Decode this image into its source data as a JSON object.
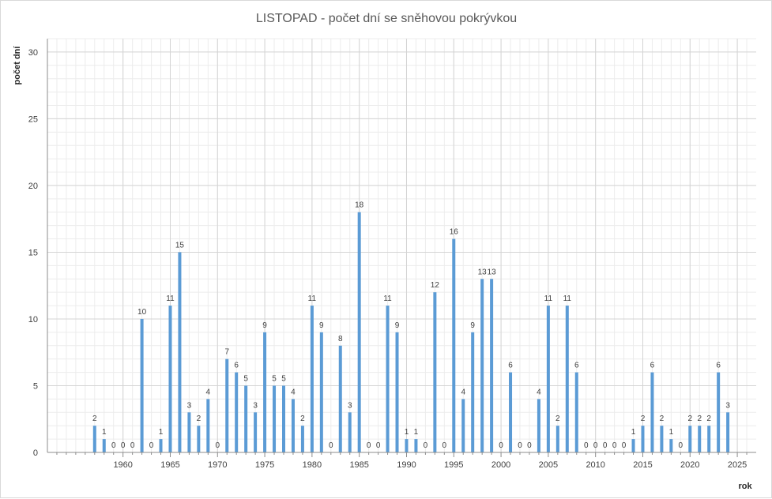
{
  "chart_data": {
    "type": "bar",
    "title": "LISTOPAD - počet dní se sněhovou pokrývkou",
    "xlabel": "rok",
    "ylabel": "počet dní",
    "x": [
      1957,
      1958,
      1959,
      1960,
      1961,
      1962,
      1963,
      1964,
      1965,
      1966,
      1967,
      1968,
      1969,
      1970,
      1971,
      1972,
      1973,
      1974,
      1975,
      1976,
      1977,
      1978,
      1979,
      1980,
      1981,
      1982,
      1983,
      1984,
      1985,
      1986,
      1987,
      1988,
      1989,
      1990,
      1991,
      1992,
      1993,
      1994,
      1995,
      1996,
      1997,
      1998,
      1999,
      2000,
      2001,
      2002,
      2003,
      2004,
      2005,
      2006,
      2007,
      2008,
      2009,
      2010,
      2011,
      2012,
      2013,
      2014,
      2015,
      2016,
      2017,
      2018,
      2019,
      2020,
      2021,
      2022,
      2023,
      2024
    ],
    "values": [
      2,
      1,
      0,
      0,
      0,
      10,
      0,
      1,
      11,
      15,
      3,
      2,
      4,
      0,
      7,
      6,
      5,
      3,
      9,
      5,
      5,
      4,
      2,
      11,
      9,
      0,
      8,
      3,
      18,
      0,
      0,
      11,
      9,
      1,
      1,
      0,
      12,
      0,
      16,
      4,
      9,
      13,
      13,
      0,
      6,
      0,
      0,
      4,
      11,
      2,
      11,
      6,
      0,
      0,
      0,
      0,
      0,
      1,
      2,
      6,
      2,
      1,
      0,
      2,
      2,
      2,
      6,
      3
    ],
    "xlim": [
      1952,
      2027
    ],
    "ylim": [
      0,
      31
    ],
    "xticks": [
      1960,
      1965,
      1970,
      1975,
      1980,
      1985,
      1990,
      1995,
      2000,
      2005,
      2010,
      2015,
      2020,
      2025
    ],
    "yticks": [
      0,
      5,
      10,
      15,
      20,
      25,
      30
    ],
    "grid": true,
    "bar_color": "#5b9bd5"
  }
}
